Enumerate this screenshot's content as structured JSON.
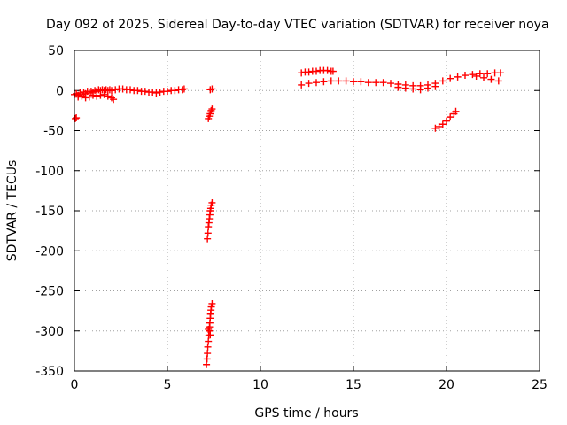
{
  "chart_data": {
    "type": "scatter",
    "title": "Day 092 of 2025, Sidereal Day-to-day VTEC variation (SDTVAR) for receiver noya",
    "xlabel": "GPS time / hours",
    "ylabel": "SDTVAR / TECUs",
    "xlim": [
      0,
      25
    ],
    "ylim": [
      -350,
      50
    ],
    "xticks": [
      0,
      5,
      10,
      15,
      20,
      25
    ],
    "yticks": [
      50,
      0,
      -50,
      -100,
      -150,
      -200,
      -250,
      -300,
      -350
    ],
    "grid": true,
    "legend": "none",
    "marker": "+",
    "color": "#ff0000",
    "points": [
      [
        0.05,
        -35
      ],
      [
        0.1,
        -34
      ],
      [
        0.0,
        -5
      ],
      [
        0.1,
        -4
      ],
      [
        0.2,
        -6
      ],
      [
        0.3,
        -3
      ],
      [
        0.4,
        -5
      ],
      [
        0.5,
        -2
      ],
      [
        0.6,
        -4
      ],
      [
        0.7,
        -1
      ],
      [
        0.8,
        -3
      ],
      [
        0.9,
        -1
      ],
      [
        1.0,
        -2
      ],
      [
        1.1,
        0
      ],
      [
        1.2,
        -1
      ],
      [
        1.3,
        1
      ],
      [
        1.4,
        0
      ],
      [
        1.5,
        1
      ],
      [
        1.6,
        0
      ],
      [
        1.7,
        1
      ],
      [
        1.8,
        0
      ],
      [
        1.9,
        1
      ],
      [
        2.0,
        0
      ],
      [
        0.2,
        -8
      ],
      [
        0.4,
        -7
      ],
      [
        0.6,
        -9
      ],
      [
        0.8,
        -8
      ],
      [
        1.0,
        -6
      ],
      [
        1.2,
        -7
      ],
      [
        1.4,
        -6
      ],
      [
        1.6,
        -5
      ],
      [
        1.8,
        -7
      ],
      [
        2.0,
        -9
      ],
      [
        2.1,
        -11
      ],
      [
        2.2,
        1
      ],
      [
        2.4,
        2
      ],
      [
        2.6,
        2
      ],
      [
        2.8,
        1
      ],
      [
        3.0,
        1
      ],
      [
        3.2,
        0
      ],
      [
        3.4,
        0
      ],
      [
        3.6,
        -1
      ],
      [
        3.8,
        -1
      ],
      [
        4.0,
        -2
      ],
      [
        4.2,
        -2
      ],
      [
        4.4,
        -3
      ],
      [
        4.6,
        -2
      ],
      [
        4.8,
        -1
      ],
      [
        5.0,
        -1
      ],
      [
        5.2,
        0
      ],
      [
        5.4,
        0
      ],
      [
        5.6,
        1
      ],
      [
        5.8,
        1
      ],
      [
        5.9,
        2
      ],
      [
        7.3,
        1
      ],
      [
        7.4,
        2
      ],
      [
        7.2,
        -35
      ],
      [
        7.25,
        -32
      ],
      [
        7.3,
        -29
      ],
      [
        7.35,
        -25
      ],
      [
        7.4,
        -23
      ],
      [
        7.15,
        -185
      ],
      [
        7.18,
        -178
      ],
      [
        7.2,
        -170
      ],
      [
        7.23,
        -165
      ],
      [
        7.25,
        -160
      ],
      [
        7.28,
        -155
      ],
      [
        7.3,
        -150
      ],
      [
        7.33,
        -147
      ],
      [
        7.35,
        -143
      ],
      [
        7.4,
        -140
      ],
      [
        7.1,
        -342
      ],
      [
        7.13,
        -335
      ],
      [
        7.15,
        -328
      ],
      [
        7.17,
        -320
      ],
      [
        7.2,
        -313
      ],
      [
        7.22,
        -306
      ],
      [
        7.24,
        -300
      ],
      [
        7.26,
        -295
      ],
      [
        7.28,
        -290
      ],
      [
        7.3,
        -284
      ],
      [
        7.32,
        -279
      ],
      [
        7.34,
        -274
      ],
      [
        7.36,
        -270
      ],
      [
        7.4,
        -266
      ],
      [
        7.2,
        -298
      ],
      [
        7.3,
        -305
      ],
      [
        12.2,
        22
      ],
      [
        12.4,
        23
      ],
      [
        12.6,
        23
      ],
      [
        12.8,
        24
      ],
      [
        13.0,
        24
      ],
      [
        13.2,
        25
      ],
      [
        13.4,
        25
      ],
      [
        13.6,
        25
      ],
      [
        13.8,
        24
      ],
      [
        13.9,
        24
      ],
      [
        12.2,
        7
      ],
      [
        12.6,
        9
      ],
      [
        13.0,
        10
      ],
      [
        13.4,
        11
      ],
      [
        13.8,
        12
      ],
      [
        14.2,
        12
      ],
      [
        14.6,
        12
      ],
      [
        15.0,
        11
      ],
      [
        15.4,
        11
      ],
      [
        15.8,
        10
      ],
      [
        16.2,
        10
      ],
      [
        16.6,
        10
      ],
      [
        17.0,
        9
      ],
      [
        17.4,
        8
      ],
      [
        17.8,
        7
      ],
      [
        18.2,
        6
      ],
      [
        18.6,
        6
      ],
      [
        19.0,
        7
      ],
      [
        19.4,
        9
      ],
      [
        19.8,
        12
      ],
      [
        20.2,
        15
      ],
      [
        20.6,
        17
      ],
      [
        21.0,
        19
      ],
      [
        21.4,
        20
      ],
      [
        21.8,
        21
      ],
      [
        22.2,
        21
      ],
      [
        22.6,
        22
      ],
      [
        22.9,
        22
      ],
      [
        17.4,
        4
      ],
      [
        17.8,
        3
      ],
      [
        18.2,
        2
      ],
      [
        18.6,
        1
      ],
      [
        19.0,
        3
      ],
      [
        19.4,
        5
      ],
      [
        21.6,
        18
      ],
      [
        22.0,
        16
      ],
      [
        22.4,
        14
      ],
      [
        22.8,
        12
      ],
      [
        19.4,
        -47
      ],
      [
        19.6,
        -45
      ],
      [
        19.8,
        -42
      ],
      [
        20.0,
        -38
      ],
      [
        20.2,
        -33
      ],
      [
        20.4,
        -29
      ],
      [
        20.5,
        -26
      ]
    ]
  }
}
